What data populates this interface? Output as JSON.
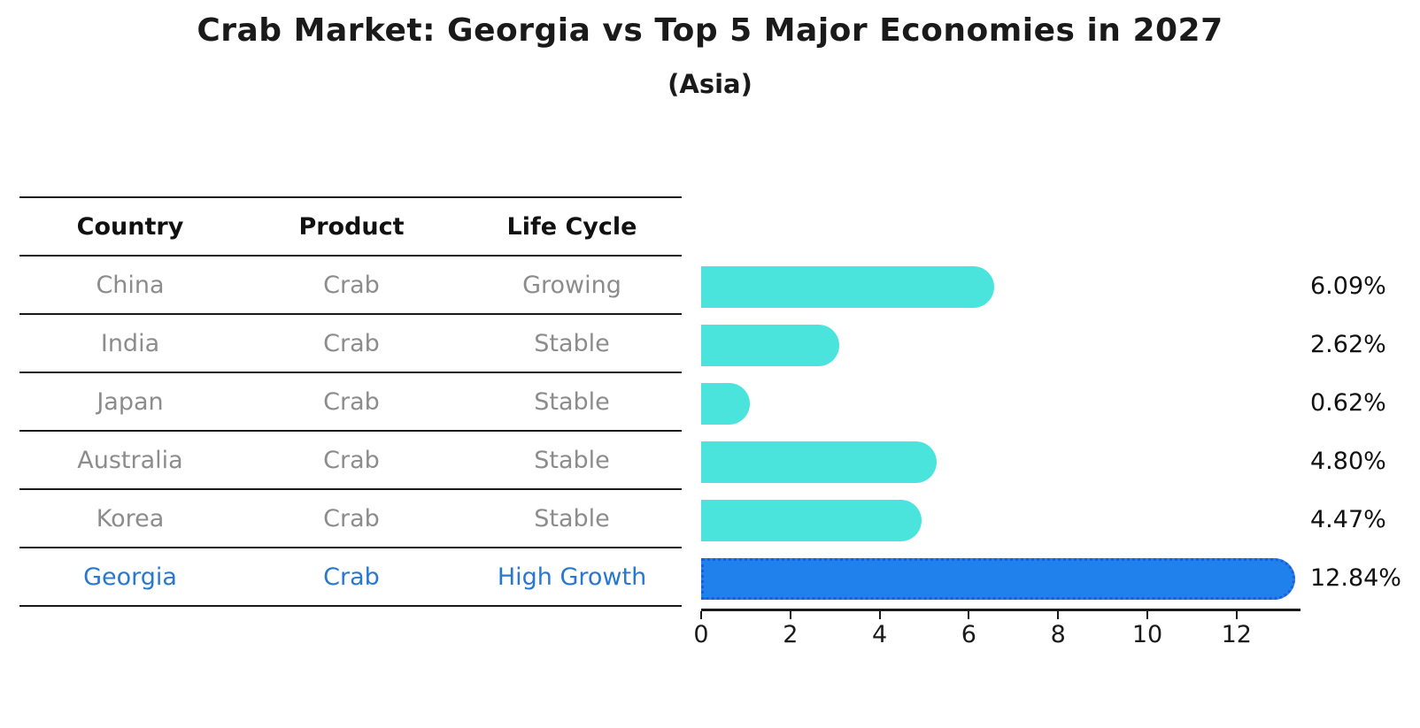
{
  "header": {
    "title": "Crab Market: Georgia vs Top 5 Major Economies in 2027",
    "subtitle": "(Asia)"
  },
  "table": {
    "columns": [
      "Country",
      "Product",
      "Life Cycle"
    ],
    "rows": [
      {
        "country": "China",
        "product": "Crab",
        "life_cycle": "Growing",
        "highlight": false
      },
      {
        "country": "India",
        "product": "Crab",
        "life_cycle": "Stable",
        "highlight": false
      },
      {
        "country": "Japan",
        "product": "Crab",
        "life_cycle": "Stable",
        "highlight": false
      },
      {
        "country": "Australia",
        "product": "Crab",
        "life_cycle": "Stable",
        "highlight": false
      },
      {
        "country": "Korea",
        "product": "Crab",
        "life_cycle": "Stable",
        "highlight": false
      },
      {
        "country": "Georgia",
        "product": "Crab",
        "life_cycle": "High Growth",
        "highlight": true
      }
    ]
  },
  "chart_data": {
    "type": "bar",
    "orientation": "horizontal",
    "title": "Crab Market: Georgia vs Top 5 Major Economies in 2027",
    "subtitle": "(Asia)",
    "categories": [
      "China",
      "India",
      "Japan",
      "Australia",
      "Korea",
      "Georgia"
    ],
    "values": [
      6.09,
      2.62,
      0.62,
      4.8,
      4.47,
      12.84
    ],
    "value_labels": [
      "6.09%",
      "2.62%",
      "0.62%",
      "4.80%",
      "4.47%",
      "12.84%"
    ],
    "xlim": [
      0,
      13.43
    ],
    "x_ticks": [
      0,
      2,
      4,
      6,
      8,
      10,
      12
    ],
    "x_tick_labels": [
      "0",
      "2",
      "4",
      "6",
      "8",
      "10",
      "12"
    ],
    "grid": false,
    "legend": false,
    "bar_color": "#4be4dc",
    "highlight_bar_color": "#2080ec",
    "highlight_bar_edge_color": "#1b5fd6",
    "highlight_index": 5
  },
  "colors": {
    "header_text": "#111111",
    "row_text": "#8c8c8c",
    "highlight_text": "#2878d1",
    "axis": "#1a1a1a"
  }
}
